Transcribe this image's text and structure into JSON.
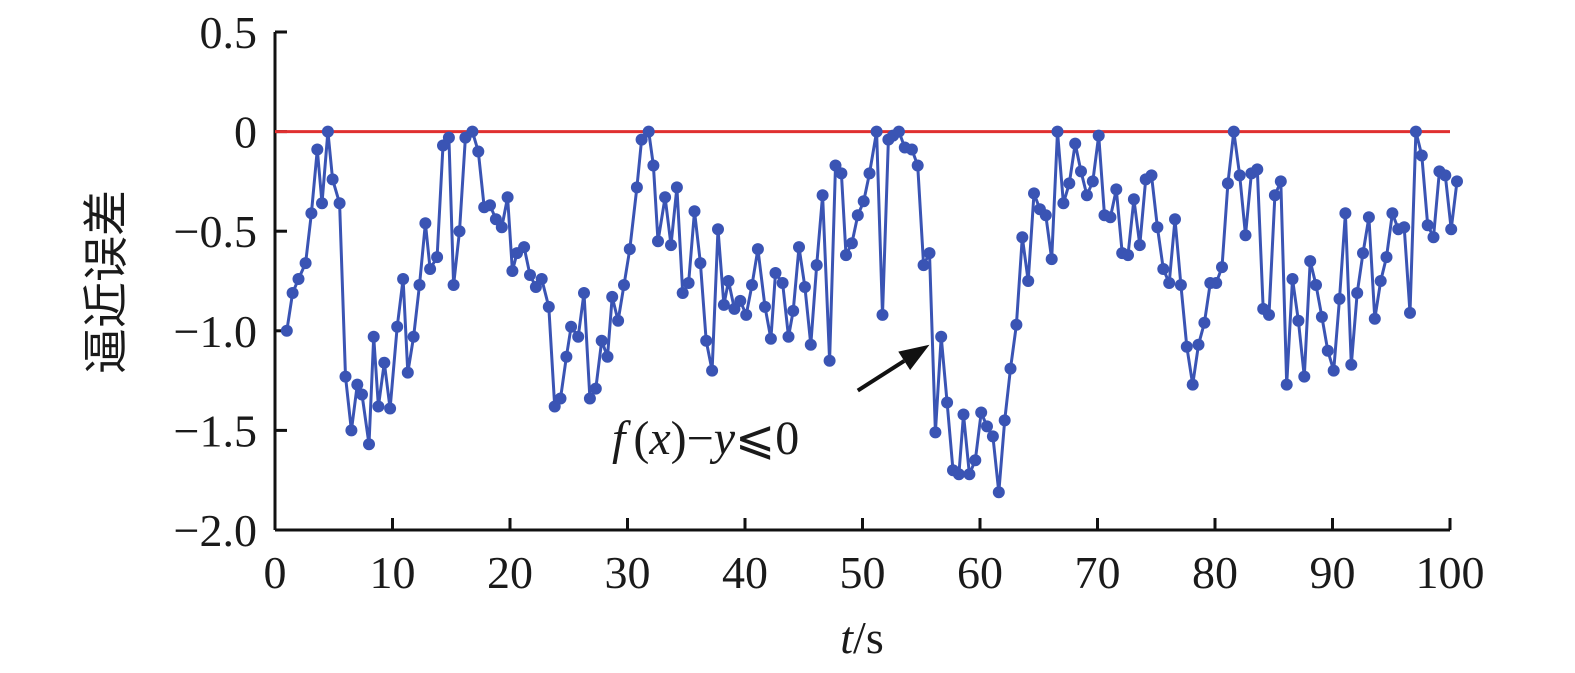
{
  "chart_data": {
    "type": "line",
    "xlabel_italic": "t",
    "xlabel_rest": "/s",
    "ylabel": "逼近误差",
    "xlim": [
      0,
      100
    ],
    "ylim": [
      -2.0,
      0.5
    ],
    "x_ticks": [
      0,
      10,
      20,
      30,
      40,
      50,
      60,
      70,
      80,
      90,
      100
    ],
    "x_tick_labels": [
      "0",
      "10",
      "20",
      "30",
      "40",
      "50",
      "60",
      "70",
      "80",
      "90",
      "100"
    ],
    "y_ticks": [
      0.5,
      0,
      -0.5,
      -1.0,
      -1.5,
      -2.0
    ],
    "y_tick_labels": [
      "0.5",
      "0",
      "−0.5",
      "−1.0",
      "−1.5",
      "−2.0"
    ],
    "grid": false,
    "reference_line": {
      "y": 0,
      "color": "#e03030"
    },
    "series": [
      {
        "color": "#3a54b4",
        "points": [
          [
            1.0,
            -1.0
          ],
          [
            1.5,
            -0.81
          ],
          [
            2.0,
            -0.74
          ],
          [
            2.6,
            -0.66
          ],
          [
            3.1,
            -0.41
          ],
          [
            3.6,
            -0.09
          ],
          [
            4.0,
            -0.36
          ],
          [
            4.5,
            0.0
          ],
          [
            4.9,
            -0.24
          ],
          [
            5.5,
            -0.36
          ],
          [
            6.0,
            -1.23
          ],
          [
            6.5,
            -1.5
          ],
          [
            7.0,
            -1.27
          ],
          [
            7.4,
            -1.32
          ],
          [
            8.0,
            -1.57
          ],
          [
            8.4,
            -1.03
          ],
          [
            8.8,
            -1.38
          ],
          [
            9.3,
            -1.16
          ],
          [
            9.8,
            -1.39
          ],
          [
            10.4,
            -0.98
          ],
          [
            10.9,
            -0.74
          ],
          [
            11.3,
            -1.21
          ],
          [
            11.8,
            -1.03
          ],
          [
            12.3,
            -0.77
          ],
          [
            12.8,
            -0.46
          ],
          [
            13.2,
            -0.69
          ],
          [
            13.8,
            -0.63
          ],
          [
            14.3,
            -0.07
          ],
          [
            14.8,
            -0.03
          ],
          [
            15.2,
            -0.77
          ],
          [
            15.7,
            -0.5
          ],
          [
            16.2,
            -0.03
          ],
          [
            16.8,
            0.0
          ],
          [
            17.3,
            -0.1
          ],
          [
            17.8,
            -0.38
          ],
          [
            18.3,
            -0.37
          ],
          [
            18.8,
            -0.44
          ],
          [
            19.3,
            -0.48
          ],
          [
            19.8,
            -0.33
          ],
          [
            20.2,
            -0.7
          ],
          [
            20.6,
            -0.61
          ],
          [
            21.2,
            -0.58
          ],
          [
            21.7,
            -0.72
          ],
          [
            22.2,
            -0.78
          ],
          [
            22.7,
            -0.74
          ],
          [
            23.3,
            -0.88
          ],
          [
            23.8,
            -1.38
          ],
          [
            24.3,
            -1.34
          ],
          [
            24.8,
            -1.13
          ],
          [
            25.2,
            -0.98
          ],
          [
            25.8,
            -1.03
          ],
          [
            26.3,
            -0.81
          ],
          [
            26.8,
            -1.34
          ],
          [
            27.3,
            -1.29
          ],
          [
            27.8,
            -1.05
          ],
          [
            28.3,
            -1.13
          ],
          [
            28.7,
            -0.83
          ],
          [
            29.2,
            -0.95
          ],
          [
            29.7,
            -0.77
          ],
          [
            30.2,
            -0.59
          ],
          [
            30.8,
            -0.28
          ],
          [
            31.2,
            -0.04
          ],
          [
            31.8,
            0.0
          ],
          [
            32.2,
            -0.17
          ],
          [
            32.6,
            -0.55
          ],
          [
            33.2,
            -0.33
          ],
          [
            33.7,
            -0.57
          ],
          [
            34.2,
            -0.28
          ],
          [
            34.7,
            -0.81
          ],
          [
            35.2,
            -0.76
          ],
          [
            35.7,
            -0.4
          ],
          [
            36.2,
            -0.66
          ],
          [
            36.7,
            -1.05
          ],
          [
            37.2,
            -1.2
          ],
          [
            37.7,
            -0.49
          ],
          [
            38.2,
            -0.87
          ],
          [
            38.6,
            -0.75
          ],
          [
            39.1,
            -0.89
          ],
          [
            39.6,
            -0.85
          ],
          [
            40.1,
            -0.92
          ],
          [
            40.6,
            -0.77
          ],
          [
            41.1,
            -0.59
          ],
          [
            41.7,
            -0.88
          ],
          [
            42.2,
            -1.04
          ],
          [
            42.6,
            -0.71
          ],
          [
            43.2,
            -0.76
          ],
          [
            43.7,
            -1.03
          ],
          [
            44.1,
            -0.9
          ],
          [
            44.6,
            -0.58
          ],
          [
            45.1,
            -0.78
          ],
          [
            45.6,
            -1.07
          ],
          [
            46.1,
            -0.67
          ],
          [
            46.6,
            -0.32
          ],
          [
            47.2,
            -1.15
          ],
          [
            47.7,
            -0.17
          ],
          [
            48.2,
            -0.21
          ],
          [
            48.6,
            -0.62
          ],
          [
            49.1,
            -0.56
          ],
          [
            49.6,
            -0.42
          ],
          [
            50.1,
            -0.35
          ],
          [
            50.6,
            -0.21
          ],
          [
            51.2,
            0.0
          ],
          [
            51.7,
            -0.92
          ],
          [
            52.2,
            -0.04
          ],
          [
            52.6,
            -0.02
          ],
          [
            53.1,
            0.0
          ],
          [
            53.6,
            -0.08
          ],
          [
            54.2,
            -0.09
          ],
          [
            54.7,
            -0.17
          ],
          [
            55.2,
            -0.67
          ],
          [
            55.7,
            -0.61
          ],
          [
            56.2,
            -1.51
          ],
          [
            56.7,
            -1.03
          ],
          [
            57.2,
            -1.36
          ],
          [
            57.7,
            -1.7
          ],
          [
            58.2,
            -1.72
          ],
          [
            58.6,
            -1.42
          ],
          [
            59.1,
            -1.72
          ],
          [
            59.6,
            -1.65
          ],
          [
            60.1,
            -1.41
          ],
          [
            60.6,
            -1.48
          ],
          [
            61.1,
            -1.53
          ],
          [
            61.6,
            -1.81
          ],
          [
            62.1,
            -1.45
          ],
          [
            62.6,
            -1.19
          ],
          [
            63.1,
            -0.97
          ],
          [
            63.6,
            -0.53
          ],
          [
            64.1,
            -0.75
          ],
          [
            64.6,
            -0.31
          ],
          [
            65.1,
            -0.39
          ],
          [
            65.6,
            -0.42
          ],
          [
            66.1,
            -0.64
          ],
          [
            66.6,
            0.0
          ],
          [
            67.1,
            -0.36
          ],
          [
            67.6,
            -0.26
          ],
          [
            68.1,
            -0.06
          ],
          [
            68.6,
            -0.2
          ],
          [
            69.1,
            -0.32
          ],
          [
            69.6,
            -0.25
          ],
          [
            70.1,
            -0.02
          ],
          [
            70.6,
            -0.42
          ],
          [
            71.1,
            -0.43
          ],
          [
            71.6,
            -0.29
          ],
          [
            72.1,
            -0.61
          ],
          [
            72.6,
            -0.62
          ],
          [
            73.1,
            -0.34
          ],
          [
            73.6,
            -0.57
          ],
          [
            74.1,
            -0.24
          ],
          [
            74.6,
            -0.22
          ],
          [
            75.1,
            -0.48
          ],
          [
            75.6,
            -0.69
          ],
          [
            76.1,
            -0.76
          ],
          [
            76.6,
            -0.44
          ],
          [
            77.1,
            -0.77
          ],
          [
            77.6,
            -1.08
          ],
          [
            78.1,
            -1.27
          ],
          [
            78.6,
            -1.07
          ],
          [
            79.1,
            -0.96
          ],
          [
            79.6,
            -0.76
          ],
          [
            80.1,
            -0.76
          ],
          [
            80.6,
            -0.68
          ],
          [
            81.1,
            -0.26
          ],
          [
            81.6,
            0.0
          ],
          [
            82.1,
            -0.22
          ],
          [
            82.6,
            -0.52
          ],
          [
            83.1,
            -0.21
          ],
          [
            83.6,
            -0.19
          ],
          [
            84.1,
            -0.89
          ],
          [
            84.6,
            -0.92
          ],
          [
            85.1,
            -0.32
          ],
          [
            85.6,
            -0.25
          ],
          [
            86.1,
            -1.27
          ],
          [
            86.6,
            -0.74
          ],
          [
            87.1,
            -0.95
          ],
          [
            87.6,
            -1.23
          ],
          [
            88.1,
            -0.65
          ],
          [
            88.6,
            -0.77
          ],
          [
            89.1,
            -0.93
          ],
          [
            89.6,
            -1.1
          ],
          [
            90.1,
            -1.2
          ],
          [
            90.6,
            -0.84
          ],
          [
            91.1,
            -0.41
          ],
          [
            91.6,
            -1.17
          ],
          [
            92.1,
            -0.81
          ],
          [
            92.6,
            -0.61
          ],
          [
            93.1,
            -0.43
          ],
          [
            93.6,
            -0.94
          ],
          [
            94.1,
            -0.75
          ],
          [
            94.6,
            -0.63
          ],
          [
            95.1,
            -0.41
          ],
          [
            95.6,
            -0.49
          ],
          [
            96.1,
            -0.48
          ],
          [
            96.6,
            -0.91
          ],
          [
            97.1,
            0.0
          ],
          [
            97.6,
            -0.12
          ],
          [
            98.1,
            -0.47
          ],
          [
            98.6,
            -0.53
          ],
          [
            99.1,
            -0.2
          ],
          [
            99.6,
            -0.22
          ],
          [
            100.1,
            -0.49
          ],
          [
            100.6,
            -0.25
          ]
        ]
      }
    ],
    "annotation": {
      "prefix_italic": "f",
      "paren_open": "(",
      "var_italic": "x",
      "middle": ")−",
      "y_italic": "y",
      "suffix": "⩽0",
      "arrow_from": [
        49.6,
        -1.3
      ],
      "arrow_to": [
        55.7,
        -1.07
      ]
    }
  }
}
